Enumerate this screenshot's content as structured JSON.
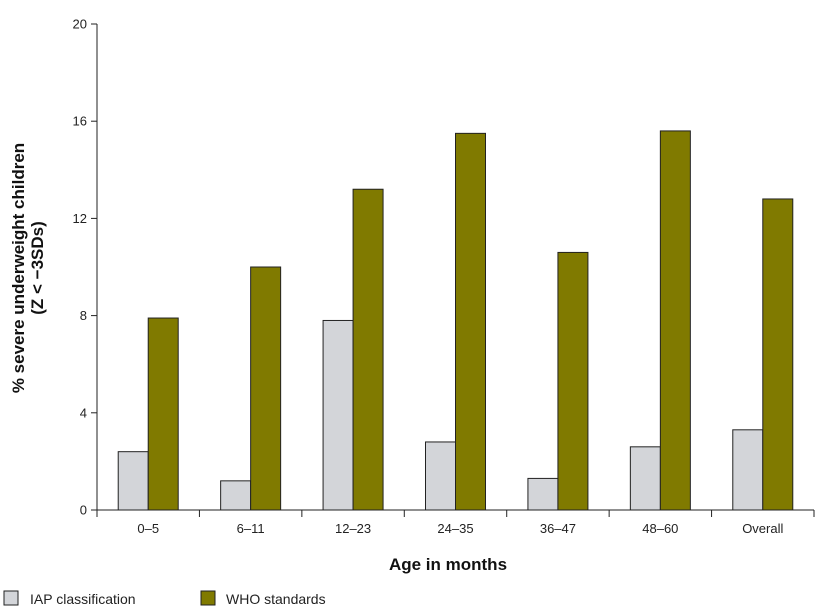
{
  "chart_data": {
    "type": "bar",
    "categories": [
      "0–5",
      "6–11",
      "12–23",
      "24–35",
      "36–47",
      "48–60",
      "Overall"
    ],
    "series": [
      {
        "name": "IAP classification",
        "color": "#d3d5d9",
        "values": [
          2.4,
          1.2,
          7.8,
          2.8,
          1.3,
          2.6,
          3.3
        ]
      },
      {
        "name": "WHO standards",
        "color": "#807a00",
        "values": [
          7.9,
          10.0,
          13.2,
          15.5,
          10.6,
          15.6,
          12.8
        ]
      }
    ],
    "xlabel": "Age in months",
    "ylabel_line1": "% severe underweight children",
    "ylabel_line2": "(Z < −3SDs)",
    "ylim": [
      0,
      20
    ],
    "yticks": [
      0,
      4,
      8,
      12,
      16,
      20
    ],
    "grid": false,
    "legend_position": "bottom-left"
  }
}
